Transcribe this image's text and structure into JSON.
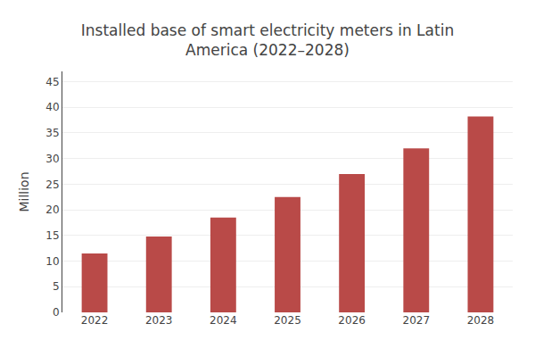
{
  "chart_data": {
    "type": "bar",
    "title": "Installed base of smart electricity meters in Latin\nAmerica (2022–2028)",
    "ylabel": "Million",
    "categories": [
      "2022",
      "2023",
      "2024",
      "2025",
      "2026",
      "2027",
      "2028"
    ],
    "values": [
      11.5,
      14.8,
      18.5,
      22.5,
      27.0,
      32.0,
      38.2
    ],
    "color": "#b94a48",
    "ylim": [
      0,
      47
    ],
    "yticks": [
      0,
      5,
      10,
      15,
      20,
      25,
      30,
      35,
      40,
      45
    ],
    "grid": true
  }
}
